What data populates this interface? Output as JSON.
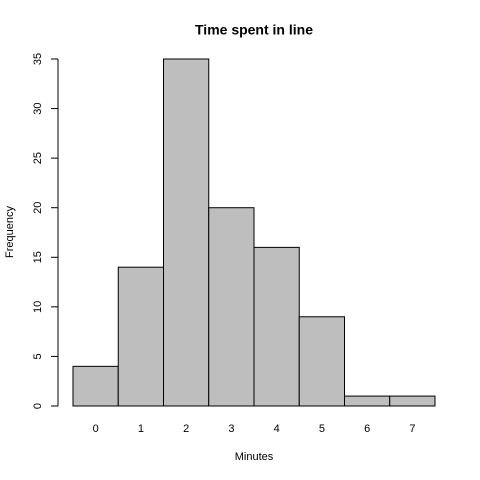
{
  "chart_data": {
    "type": "bar",
    "title": "Time spent in line",
    "x_label": "Minutes",
    "y_label": "Frequency",
    "categories": [
      "0",
      "1",
      "2",
      "3",
      "4",
      "5",
      "6",
      "7"
    ],
    "values": [
      4,
      14,
      35,
      20,
      16,
      9,
      1,
      1
    ],
    "color": "#bebebe",
    "ylim": [
      0,
      35
    ],
    "yticks": [
      0,
      5,
      10,
      15,
      20,
      25,
      30,
      35
    ],
    "grid": false
  }
}
